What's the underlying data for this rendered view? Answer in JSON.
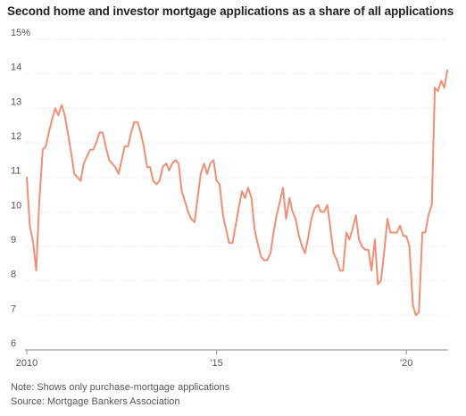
{
  "chart_data": {
    "type": "line",
    "title": "Second home and investor mortgage applications as a share of all applications",
    "ylim": [
      6,
      15
    ],
    "y_ticks": [
      6,
      7,
      8,
      9,
      10,
      11,
      12,
      13,
      14,
      15
    ],
    "y_tick_labels": [
      "6",
      "7",
      "8",
      "9",
      "10",
      "11",
      "12",
      "13",
      "14",
      "15%"
    ],
    "xlim": [
      2010,
      2021.1
    ],
    "x_ticks": [
      2010,
      2015,
      2020
    ],
    "x_tick_labels": [
      "2010",
      "'15",
      "'20"
    ],
    "grid": true,
    "line_color": "#ef8f77",
    "series": [
      {
        "x": [
          2010.0,
          2010.08,
          2010.17,
          2010.25,
          2010.33,
          2010.42,
          2010.5,
          2010.58,
          2010.67,
          2010.75,
          2010.83,
          2010.92,
          2011.0,
          2011.08,
          2011.17,
          2011.25,
          2011.33,
          2011.42,
          2011.5,
          2011.58,
          2011.67,
          2011.75,
          2011.83,
          2011.92,
          2012.0,
          2012.08,
          2012.17,
          2012.25,
          2012.33,
          2012.42,
          2012.5,
          2012.58,
          2012.67,
          2012.75,
          2012.83,
          2012.92,
          2013.0,
          2013.08,
          2013.17,
          2013.25,
          2013.33,
          2013.42,
          2013.5,
          2013.58,
          2013.67,
          2013.75,
          2013.83,
          2013.92,
          2014.0,
          2014.08,
          2014.17,
          2014.25,
          2014.33,
          2014.42,
          2014.5,
          2014.58,
          2014.67,
          2014.75,
          2014.83,
          2014.92,
          2015.0,
          2015.08,
          2015.17,
          2015.25,
          2015.33,
          2015.42,
          2015.5,
          2015.58,
          2015.67,
          2015.75,
          2015.83,
          2015.92,
          2016.0,
          2016.08,
          2016.17,
          2016.25,
          2016.33,
          2016.42,
          2016.5,
          2016.58,
          2016.67,
          2016.75,
          2016.83,
          2016.92,
          2017.0,
          2017.08,
          2017.17,
          2017.25,
          2017.33,
          2017.42,
          2017.5,
          2017.58,
          2017.67,
          2017.75,
          2017.83,
          2017.92,
          2018.0,
          2018.08,
          2018.17,
          2018.25,
          2018.33,
          2018.42,
          2018.5,
          2018.58,
          2018.67,
          2018.75,
          2018.83,
          2018.92,
          2019.0,
          2019.08,
          2019.17,
          2019.25,
          2019.33,
          2019.42,
          2019.5,
          2019.58,
          2019.67,
          2019.75,
          2019.83,
          2019.92,
          2020.0,
          2020.08,
          2020.17,
          2020.25,
          2020.33,
          2020.42,
          2020.5,
          2020.58,
          2020.67,
          2020.75,
          2020.83,
          2020.92,
          2021.0,
          2021.08
        ],
        "y": [
          11.0,
          9.6,
          9.1,
          8.3,
          10.3,
          11.8,
          11.9,
          12.3,
          12.7,
          13.0,
          12.8,
          13.1,
          12.8,
          12.3,
          11.7,
          11.1,
          11.0,
          10.9,
          11.4,
          11.6,
          11.8,
          11.8,
          12.0,
          12.3,
          12.3,
          11.9,
          11.5,
          11.4,
          11.3,
          11.1,
          11.5,
          11.9,
          11.9,
          12.3,
          12.6,
          12.6,
          12.3,
          11.9,
          11.3,
          11.3,
          10.9,
          10.8,
          10.9,
          11.3,
          11.4,
          11.2,
          11.4,
          11.5,
          11.4,
          10.6,
          10.3,
          10.0,
          9.8,
          9.7,
          10.4,
          11.1,
          11.4,
          11.1,
          11.4,
          11.5,
          10.9,
          10.8,
          9.9,
          9.5,
          9.1,
          9.1,
          9.6,
          10.1,
          10.6,
          10.4,
          10.7,
          10.4,
          9.5,
          9.1,
          8.7,
          8.6,
          8.6,
          8.8,
          9.4,
          9.9,
          10.3,
          10.7,
          9.8,
          10.4,
          10.0,
          9.8,
          9.3,
          9.0,
          8.8,
          9.3,
          9.8,
          10.1,
          10.2,
          10.0,
          10.0,
          10.2,
          9.5,
          8.8,
          8.6,
          8.3,
          8.3,
          9.4,
          9.2,
          9.5,
          9.9,
          9.2,
          9.0,
          8.9,
          8.9,
          8.3,
          9.2,
          7.9,
          8.0,
          8.9,
          9.8,
          9.4,
          9.4,
          9.4,
          9.6,
          9.3,
          9.3,
          9.0,
          7.3,
          7.0,
          7.1,
          9.4,
          9.4,
          9.9,
          10.2,
          13.6,
          13.5,
          13.8,
          13.6,
          14.1
        ]
      }
    ]
  },
  "footnotes": {
    "note": "Note: Shows only purchase-mortgage applications",
    "source": "Source: Mortgage Bankers Association"
  }
}
